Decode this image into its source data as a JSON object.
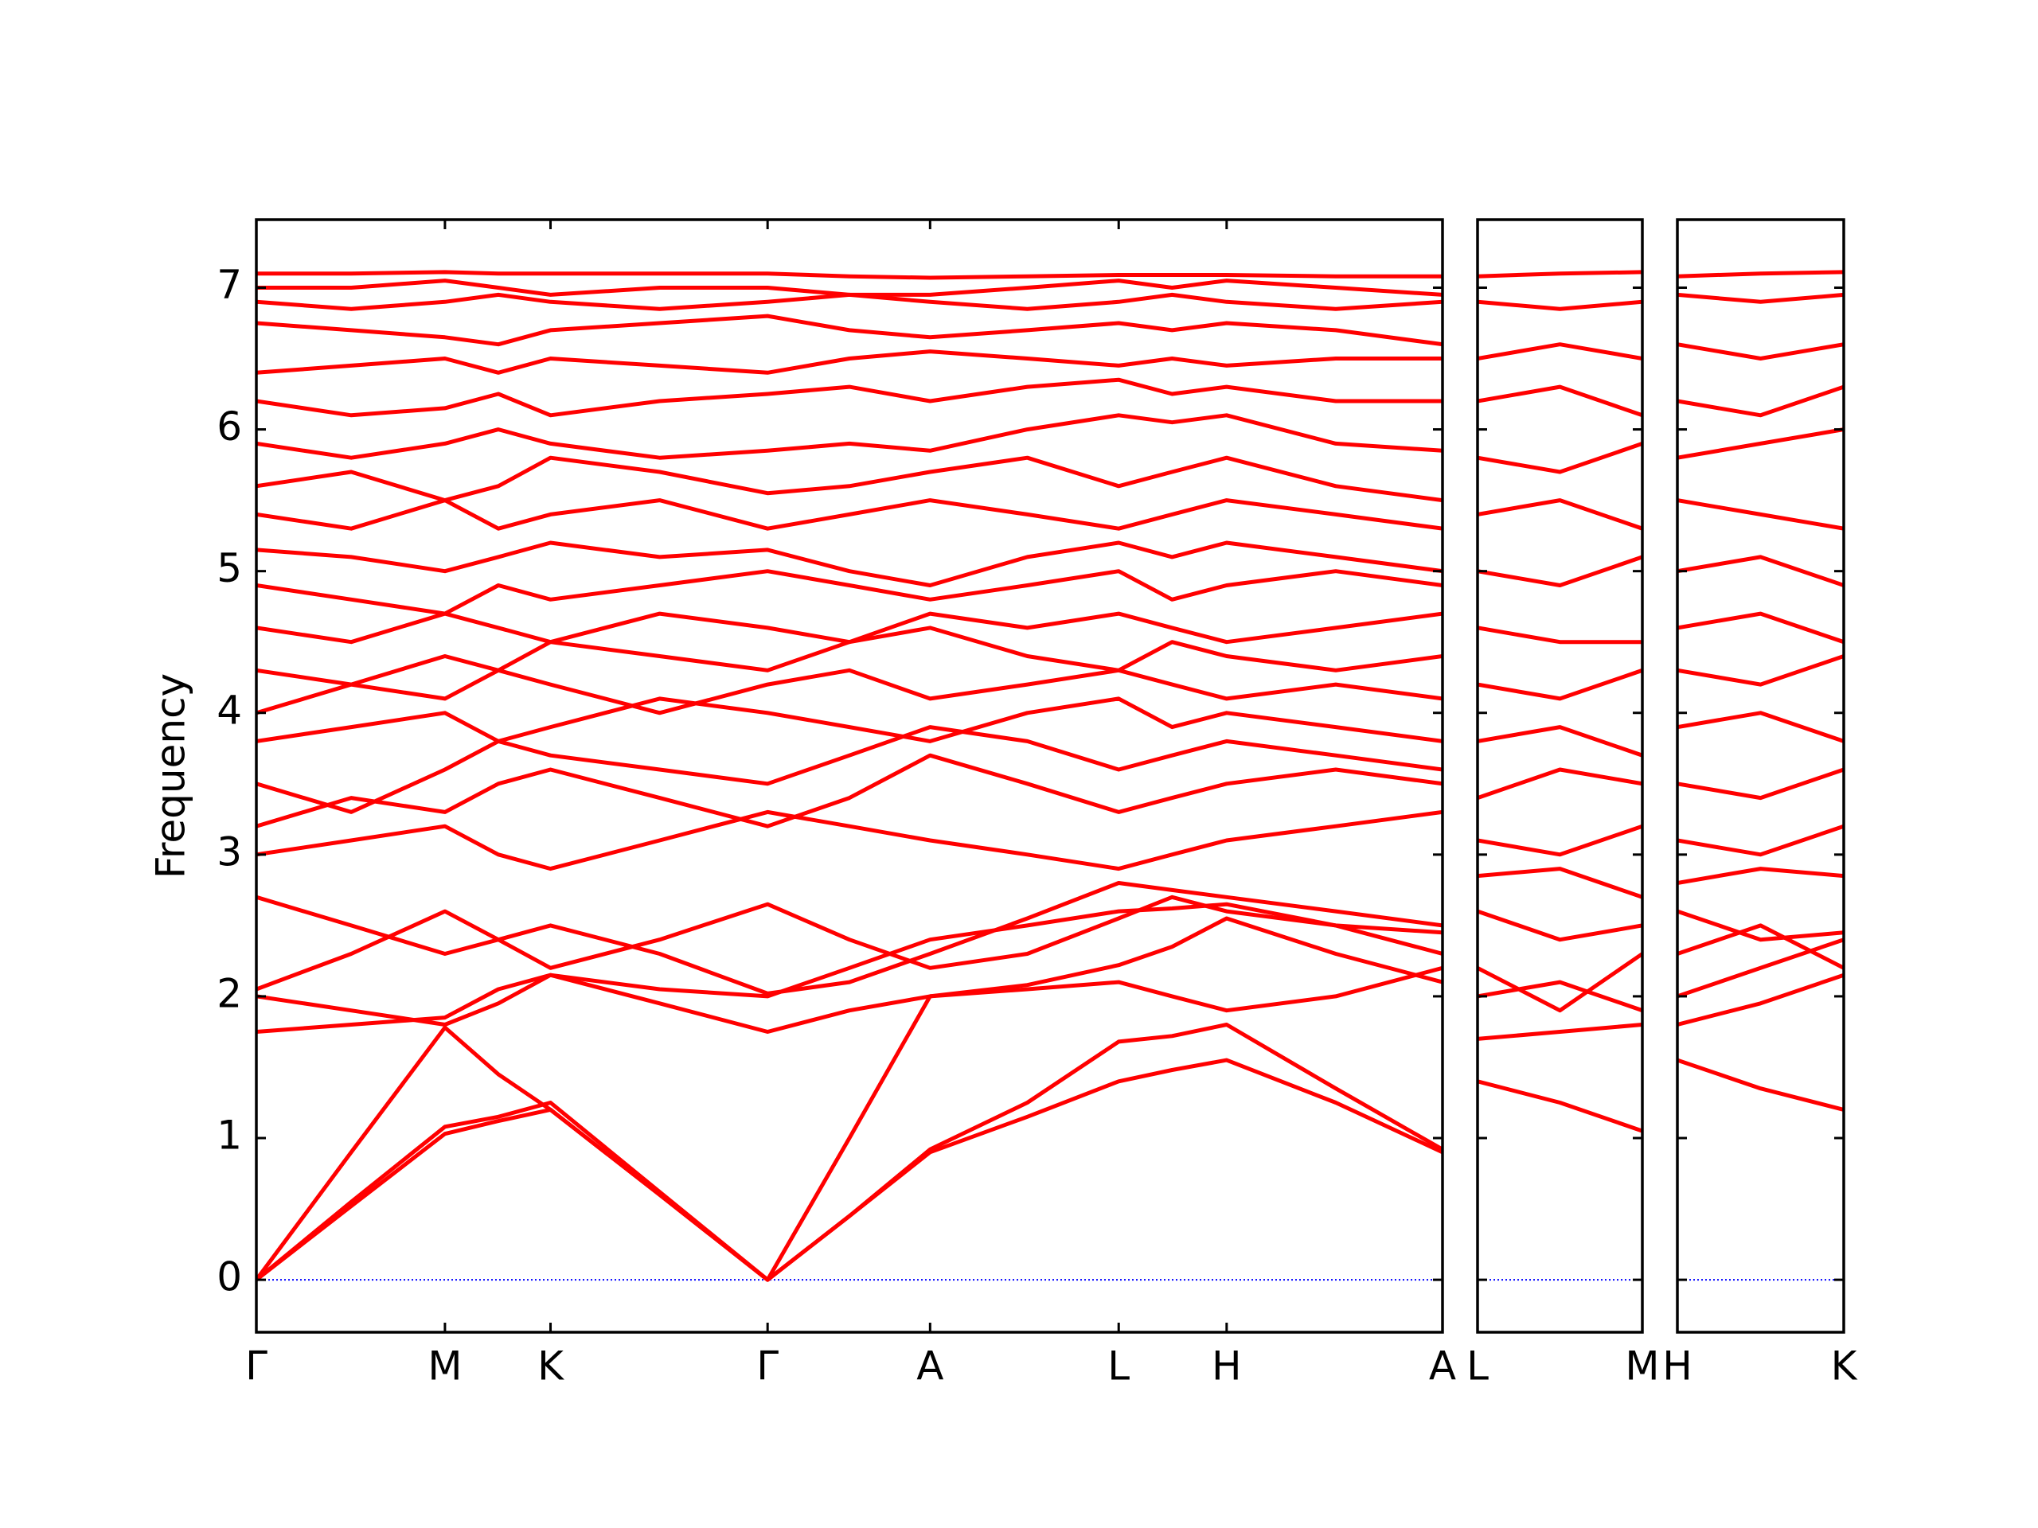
{
  "chart_data": {
    "type": "line",
    "ylabel": "Frequency",
    "ylim": [
      -0.37,
      7.48
    ],
    "yticks": [
      0,
      1,
      2,
      3,
      4,
      5,
      6,
      7
    ],
    "hline": 0,
    "hline_color": "#0000ff",
    "panels": [
      {
        "color": "#ff0000",
        "xlim": [
          0,
          1
        ],
        "xticks": [
          {
            "value": 0,
            "label": "Γ"
          },
          {
            "value": 0.159,
            "label": "M"
          },
          {
            "value": 0.248,
            "label": "K"
          },
          {
            "value": 0.431,
            "label": "Γ"
          },
          {
            "value": 0.568,
            "label": "A"
          },
          {
            "value": 0.727,
            "label": "L"
          },
          {
            "value": 0.818,
            "label": "H"
          },
          {
            "value": 1,
            "label": "A"
          }
        ],
        "x": [
          0,
          0.08,
          0.159,
          0.204,
          0.248,
          0.34,
          0.431,
          0.5,
          0.568,
          0.65,
          0.727,
          0.772,
          0.818,
          0.91,
          1
        ],
        "series": [
          {
            "values": [
              0,
              0.52,
              1.03,
              1.12,
              1.2,
              0.6,
              0,
              0.45,
              0.9,
              1.15,
              1.4,
              1.48,
              1.55,
              1.25,
              0.9
            ]
          },
          {
            "values": [
              0,
              0.55,
              1.08,
              1.15,
              1.25,
              0.62,
              0,
              0.45,
              0.92,
              1.25,
              1.68,
              1.72,
              1.8,
              1.35,
              0.92
            ]
          },
          {
            "values": [
              0,
              0.9,
              1.78,
              1.45,
              1.2,
              0.6,
              0,
              1.0,
              2.0,
              2.05,
              2.1,
              2.0,
              1.9,
              2.0,
              2.2
            ]
          },
          {
            "values": [
              1.75,
              1.8,
              1.85,
              2.05,
              2.15,
              1.95,
              1.75,
              1.9,
              2.0,
              2.08,
              2.22,
              2.35,
              2.55,
              2.3,
              2.1
            ]
          },
          {
            "values": [
              2.0,
              1.9,
              1.8,
              1.95,
              2.15,
              2.05,
              2.0,
              2.2,
              2.4,
              2.5,
              2.6,
              2.62,
              2.65,
              2.5,
              2.3
            ]
          },
          {
            "values": [
              2.05,
              2.3,
              2.6,
              2.4,
              2.2,
              2.4,
              2.65,
              2.4,
              2.2,
              2.3,
              2.55,
              2.7,
              2.6,
              2.5,
              2.45
            ]
          },
          {
            "values": [
              2.7,
              2.5,
              2.3,
              2.4,
              2.5,
              2.3,
              2.02,
              2.1,
              2.3,
              2.55,
              2.8,
              2.75,
              2.7,
              2.6,
              2.5
            ]
          },
          {
            "values": [
              3.0,
              3.1,
              3.2,
              3.0,
              2.9,
              3.1,
              3.3,
              3.2,
              3.1,
              3.0,
              2.9,
              3.0,
              3.1,
              3.2,
              3.3
            ]
          },
          {
            "values": [
              3.2,
              3.4,
              3.3,
              3.5,
              3.6,
              3.4,
              3.2,
              3.4,
              3.7,
              3.5,
              3.3,
              3.4,
              3.5,
              3.6,
              3.5
            ]
          },
          {
            "values": [
              3.5,
              3.3,
              3.6,
              3.8,
              3.7,
              3.6,
              3.5,
              3.7,
              3.9,
              3.8,
              3.6,
              3.7,
              3.8,
              3.7,
              3.6
            ]
          },
          {
            "values": [
              3.8,
              3.9,
              4.0,
              3.8,
              3.9,
              4.1,
              4.0,
              3.9,
              3.8,
              4.0,
              4.1,
              3.9,
              4.0,
              3.9,
              3.8
            ]
          },
          {
            "values": [
              4.0,
              4.2,
              4.1,
              4.3,
              4.2,
              4.0,
              4.2,
              4.3,
              4.1,
              4.2,
              4.3,
              4.2,
              4.1,
              4.2,
              4.1
            ]
          },
          {
            "values": [
              4.3,
              4.2,
              4.4,
              4.3,
              4.5,
              4.4,
              4.3,
              4.5,
              4.6,
              4.4,
              4.3,
              4.5,
              4.4,
              4.3,
              4.4
            ]
          },
          {
            "values": [
              4.6,
              4.5,
              4.7,
              4.6,
              4.5,
              4.7,
              4.6,
              4.5,
              4.7,
              4.6,
              4.7,
              4.6,
              4.5,
              4.6,
              4.7
            ]
          },
          {
            "values": [
              4.9,
              4.8,
              4.7,
              4.9,
              4.8,
              4.9,
              5.0,
              4.9,
              4.8,
              4.9,
              5.0,
              4.8,
              4.9,
              5.0,
              4.9
            ]
          },
          {
            "values": [
              5.15,
              5.1,
              5.0,
              5.1,
              5.2,
              5.1,
              5.15,
              5.0,
              4.9,
              5.1,
              5.2,
              5.1,
              5.2,
              5.1,
              5.0
            ]
          },
          {
            "values": [
              5.4,
              5.3,
              5.5,
              5.3,
              5.4,
              5.5,
              5.3,
              5.4,
              5.5,
              5.4,
              5.3,
              5.4,
              5.5,
              5.4,
              5.3
            ]
          },
          {
            "values": [
              5.6,
              5.7,
              5.5,
              5.6,
              5.8,
              5.7,
              5.55,
              5.6,
              5.7,
              5.8,
              5.6,
              5.7,
              5.8,
              5.6,
              5.5
            ]
          },
          {
            "values": [
              5.9,
              5.8,
              5.9,
              6.0,
              5.9,
              5.8,
              5.85,
              5.9,
              5.85,
              6.0,
              6.1,
              6.05,
              6.1,
              5.9,
              5.85
            ]
          },
          {
            "values": [
              6.2,
              6.1,
              6.15,
              6.25,
              6.1,
              6.2,
              6.25,
              6.3,
              6.2,
              6.3,
              6.35,
              6.25,
              6.3,
              6.2,
              6.2
            ]
          },
          {
            "values": [
              6.4,
              6.45,
              6.5,
              6.4,
              6.5,
              6.45,
              6.4,
              6.5,
              6.55,
              6.5,
              6.45,
              6.5,
              6.45,
              6.5,
              6.5
            ]
          },
          {
            "values": [
              6.75,
              6.7,
              6.65,
              6.6,
              6.7,
              6.75,
              6.8,
              6.7,
              6.65,
              6.7,
              6.75,
              6.7,
              6.75,
              6.7,
              6.6
            ]
          },
          {
            "values": [
              6.9,
              6.85,
              6.9,
              6.95,
              6.9,
              6.85,
              6.9,
              6.95,
              6.9,
              6.85,
              6.9,
              6.95,
              6.9,
              6.85,
              6.9
            ]
          },
          {
            "values": [
              7.0,
              7.0,
              7.05,
              7.0,
              6.95,
              7.0,
              7.0,
              6.95,
              6.95,
              7.0,
              7.05,
              7.0,
              7.05,
              7.0,
              6.95
            ]
          },
          {
            "values": [
              7.1,
              7.1,
              7.11,
              7.1,
              7.1,
              7.1,
              7.1,
              7.08,
              7.07,
              7.08,
              7.09,
              7.09,
              7.09,
              7.08,
              7.08
            ]
          }
        ]
      },
      {
        "color": "#ff0000",
        "xlim": [
          0,
          1
        ],
        "xticks": [
          {
            "value": 0,
            "label": "L"
          },
          {
            "value": 1,
            "label": "M"
          }
        ],
        "x": [
          0,
          0.5,
          1
        ],
        "series": [
          {
            "values": [
              1.4,
              1.25,
              1.05
            ]
          },
          {
            "values": [
              1.7,
              1.75,
              1.8
            ]
          },
          {
            "values": [
              2.0,
              2.1,
              1.9
            ]
          },
          {
            "values": [
              2.2,
              1.9,
              2.3
            ]
          },
          {
            "values": [
              2.6,
              2.4,
              2.5
            ]
          },
          {
            "values": [
              2.85,
              2.9,
              2.7
            ]
          },
          {
            "values": [
              3.1,
              3.0,
              3.2
            ]
          },
          {
            "values": [
              3.4,
              3.6,
              3.5
            ]
          },
          {
            "values": [
              3.8,
              3.9,
              3.7
            ]
          },
          {
            "values": [
              4.2,
              4.1,
              4.3
            ]
          },
          {
            "values": [
              4.6,
              4.5,
              4.5
            ]
          },
          {
            "values": [
              5.0,
              4.9,
              5.1
            ]
          },
          {
            "values": [
              5.4,
              5.5,
              5.3
            ]
          },
          {
            "values": [
              5.8,
              5.7,
              5.9
            ]
          },
          {
            "values": [
              6.2,
              6.3,
              6.1
            ]
          },
          {
            "values": [
              6.5,
              6.6,
              6.5
            ]
          },
          {
            "values": [
              6.9,
              6.85,
              6.9
            ]
          },
          {
            "values": [
              7.08,
              7.1,
              7.11
            ]
          }
        ]
      },
      {
        "color": "#ff0000",
        "xlim": [
          0,
          1
        ],
        "xticks": [
          {
            "value": 0,
            "label": "H"
          },
          {
            "value": 1,
            "label": "K"
          }
        ],
        "x": [
          0,
          0.5,
          1
        ],
        "series": [
          {
            "values": [
              1.55,
              1.35,
              1.2
            ]
          },
          {
            "values": [
              1.8,
              1.95,
              2.15
            ]
          },
          {
            "values": [
              2.0,
              2.2,
              2.4
            ]
          },
          {
            "values": [
              2.3,
              2.5,
              2.2
            ]
          },
          {
            "values": [
              2.6,
              2.4,
              2.45
            ]
          },
          {
            "values": [
              2.8,
              2.9,
              2.85
            ]
          },
          {
            "values": [
              3.1,
              3.0,
              3.2
            ]
          },
          {
            "values": [
              3.5,
              3.4,
              3.6
            ]
          },
          {
            "values": [
              3.9,
              4.0,
              3.8
            ]
          },
          {
            "values": [
              4.3,
              4.2,
              4.4
            ]
          },
          {
            "values": [
              4.6,
              4.7,
              4.5
            ]
          },
          {
            "values": [
              5.0,
              5.1,
              4.9
            ]
          },
          {
            "values": [
              5.5,
              5.4,
              5.3
            ]
          },
          {
            "values": [
              5.8,
              5.9,
              6.0
            ]
          },
          {
            "values": [
              6.2,
              6.1,
              6.3
            ]
          },
          {
            "values": [
              6.6,
              6.5,
              6.6
            ]
          },
          {
            "values": [
              6.95,
              6.9,
              6.95
            ]
          },
          {
            "values": [
              7.08,
              7.1,
              7.11
            ]
          }
        ]
      }
    ]
  }
}
